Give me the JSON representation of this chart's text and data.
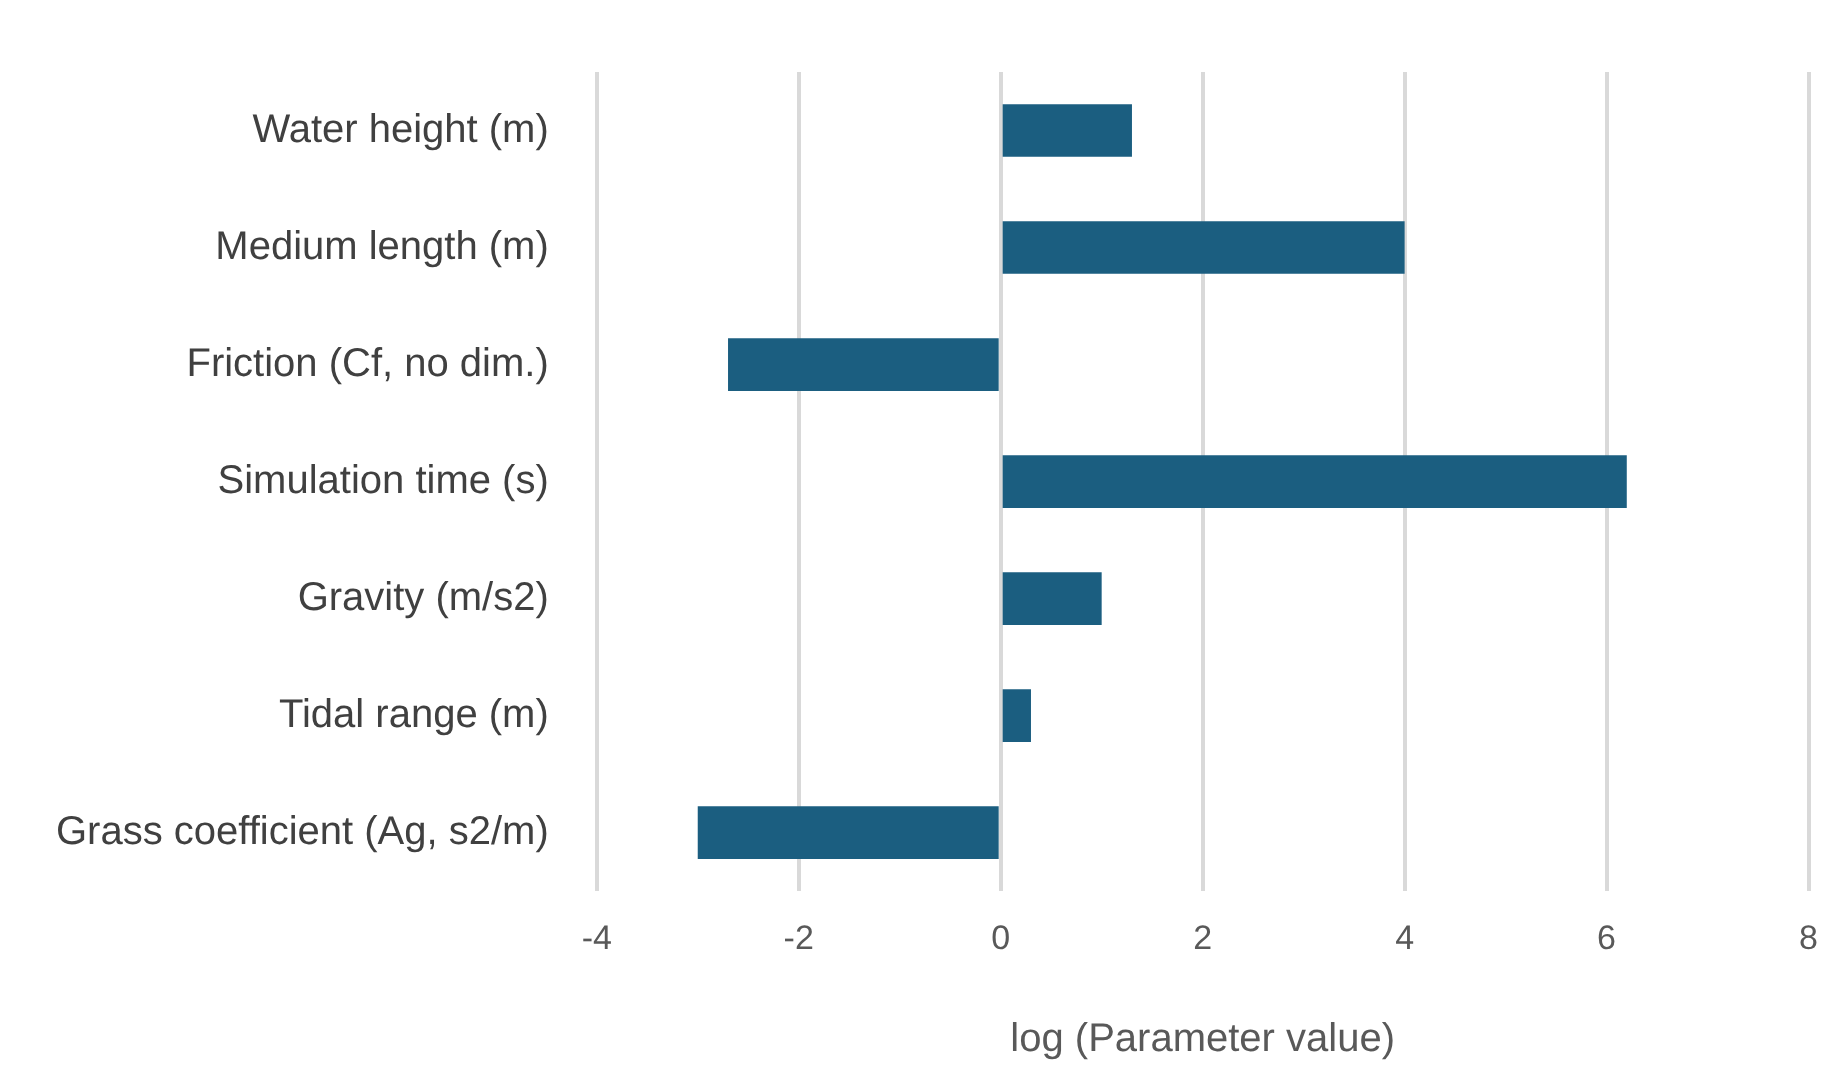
{
  "chart_data": {
    "type": "bar",
    "orientation": "horizontal",
    "xlabel": "log (Parameter value)",
    "categories": [
      "Water height (m)",
      "Medium length (m)",
      "Friction (Cf, no dim.)",
      "Simulation time (s)",
      "Gravity (m/s2)",
      "Tidal range (m)",
      "Grass coefficient (Ag, s2/m)"
    ],
    "values": [
      1.3,
      4.0,
      -2.7,
      6.2,
      1.0,
      0.3,
      -3.0
    ],
    "color": "#1b5e80",
    "xlim": [
      -4,
      8
    ],
    "xticks": [
      -4,
      -2,
      0,
      2,
      4,
      6,
      8
    ],
    "grid": "x",
    "legend": false
  }
}
